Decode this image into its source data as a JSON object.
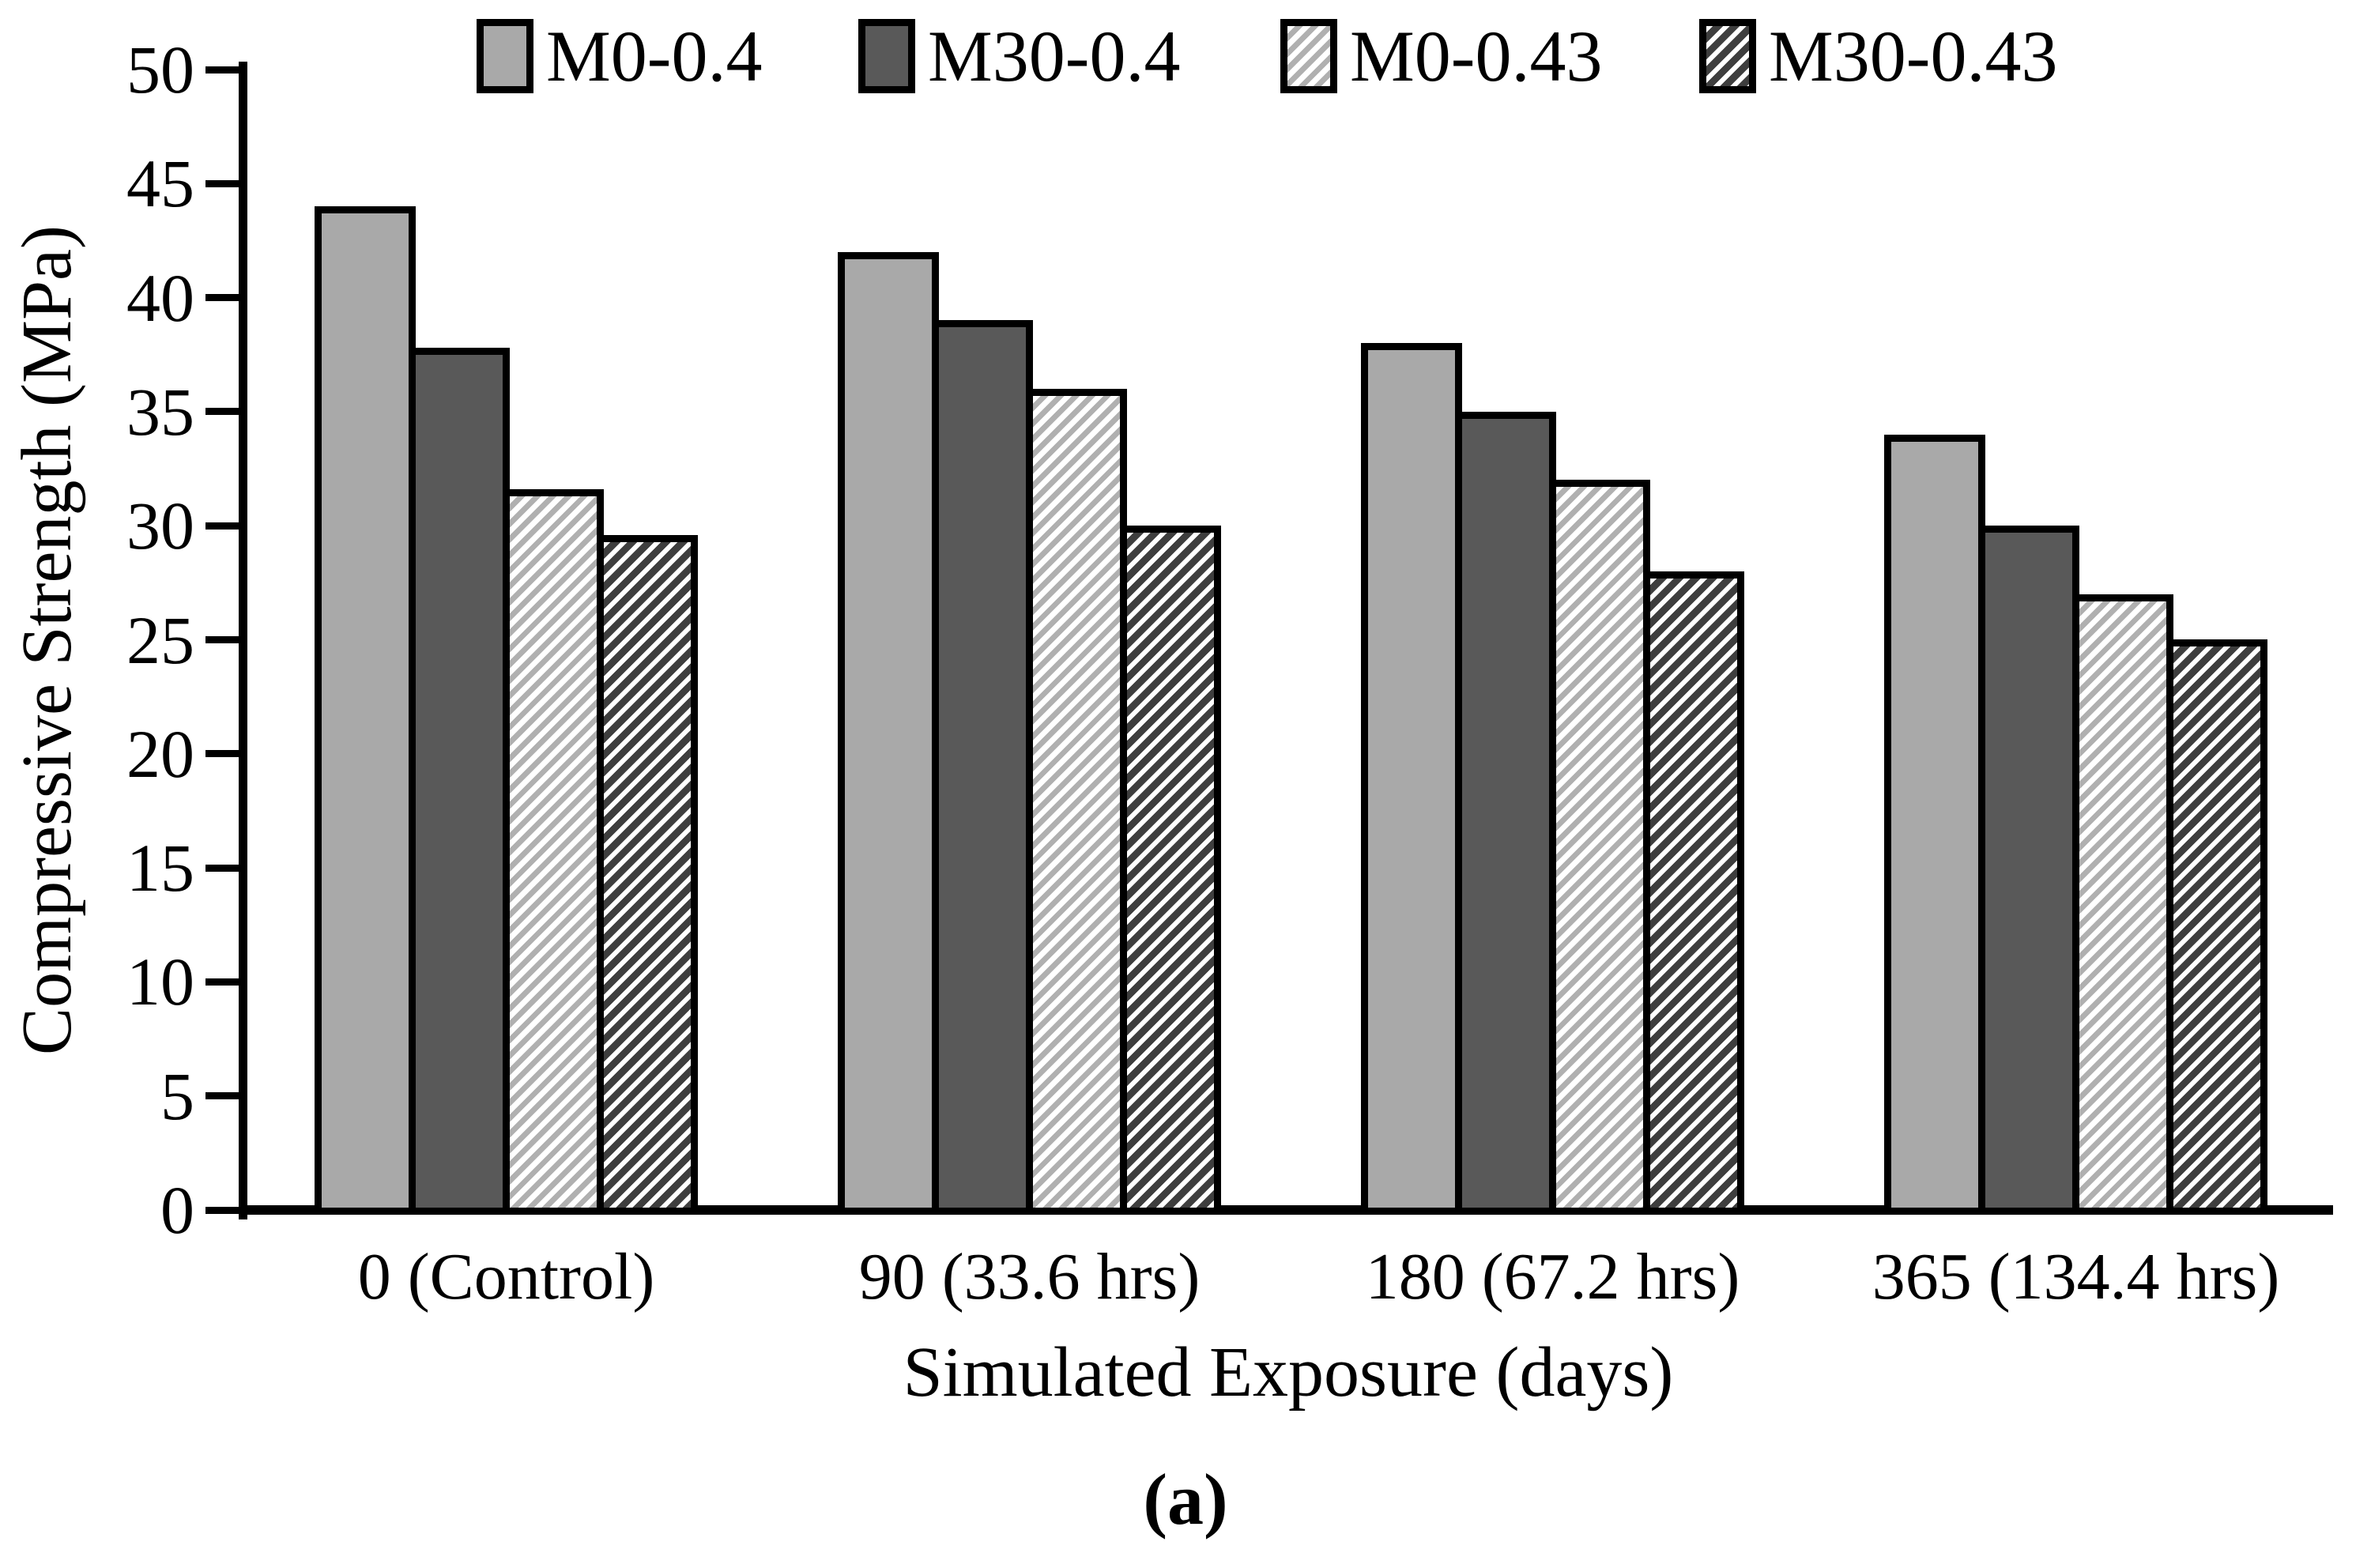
{
  "figure": {
    "caption": "(a)"
  },
  "chart_data": {
    "type": "bar",
    "title": "",
    "xlabel": "Simulated Exposure (days)",
    "ylabel": "Compressive Strength (MPa)",
    "categories": [
      "0 (Control)",
      "90 (33.6 hrs)",
      "180 (67.2 hrs)",
      "365 (134.4 hrs)"
    ],
    "series": [
      {
        "name": "M0-0.4",
        "style": "solid-light",
        "values": [
          44,
          42,
          38,
          34
        ]
      },
      {
        "name": "M30-0.4",
        "style": "solid-dark",
        "values": [
          37.8,
          39,
          35,
          30
        ]
      },
      {
        "name": "M0-0.43",
        "style": "hatch-light",
        "values": [
          31.6,
          36,
          32,
          27
        ]
      },
      {
        "name": "M30-0.43",
        "style": "hatch-dark",
        "values": [
          29.6,
          30,
          28,
          25
        ]
      }
    ],
    "ylim": [
      0,
      50
    ],
    "yticks": [
      0,
      5,
      10,
      15,
      20,
      25,
      30,
      35,
      40,
      45,
      50
    ],
    "grid": false,
    "legend_position": "top",
    "colors": {
      "bar_light": "#a9a9a9",
      "bar_dark": "#595959",
      "hatch_light_stripe": "#b0b0b0",
      "hatch_dark_stripe": "#3e3e3e",
      "axis": "#000000",
      "background": "#ffffff"
    }
  }
}
